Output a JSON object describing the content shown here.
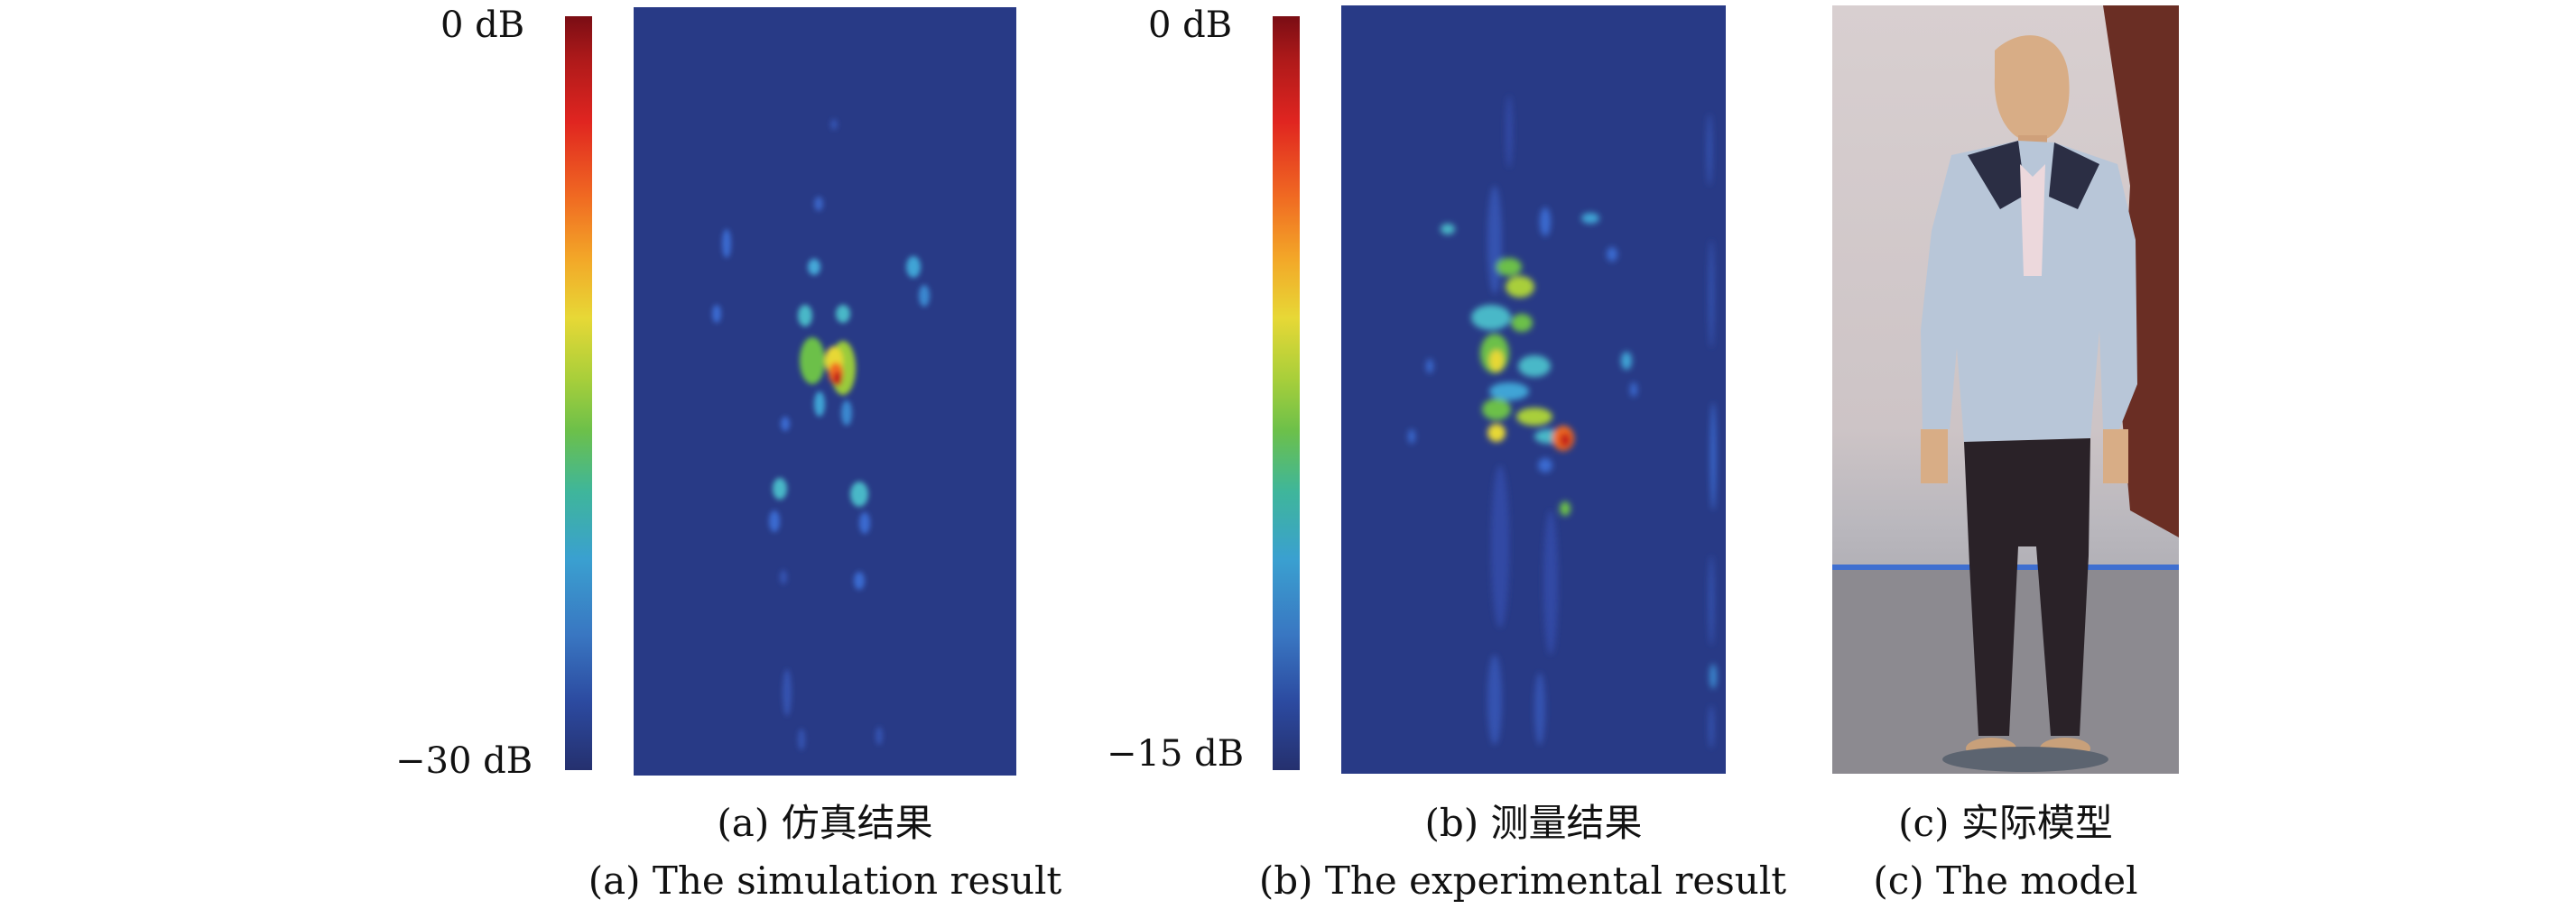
{
  "panel_a": {
    "scale_top": "0 dB",
    "scale_bottom": "−30 dB",
    "caption_cn": "(a) 仿真结果",
    "caption_en": "(a) The simulation result"
  },
  "panel_b": {
    "scale_top": "0 dB",
    "scale_bottom": "−15 dB",
    "caption_cn": "(b) 测量结果",
    "caption_en": "(b) The experimental result"
  },
  "panel_c": {
    "caption_cn": "(c) 实际模型",
    "caption_en": "(c) The model"
  },
  "colors": {
    "image_background": "#283a86",
    "colormap": "jet"
  }
}
